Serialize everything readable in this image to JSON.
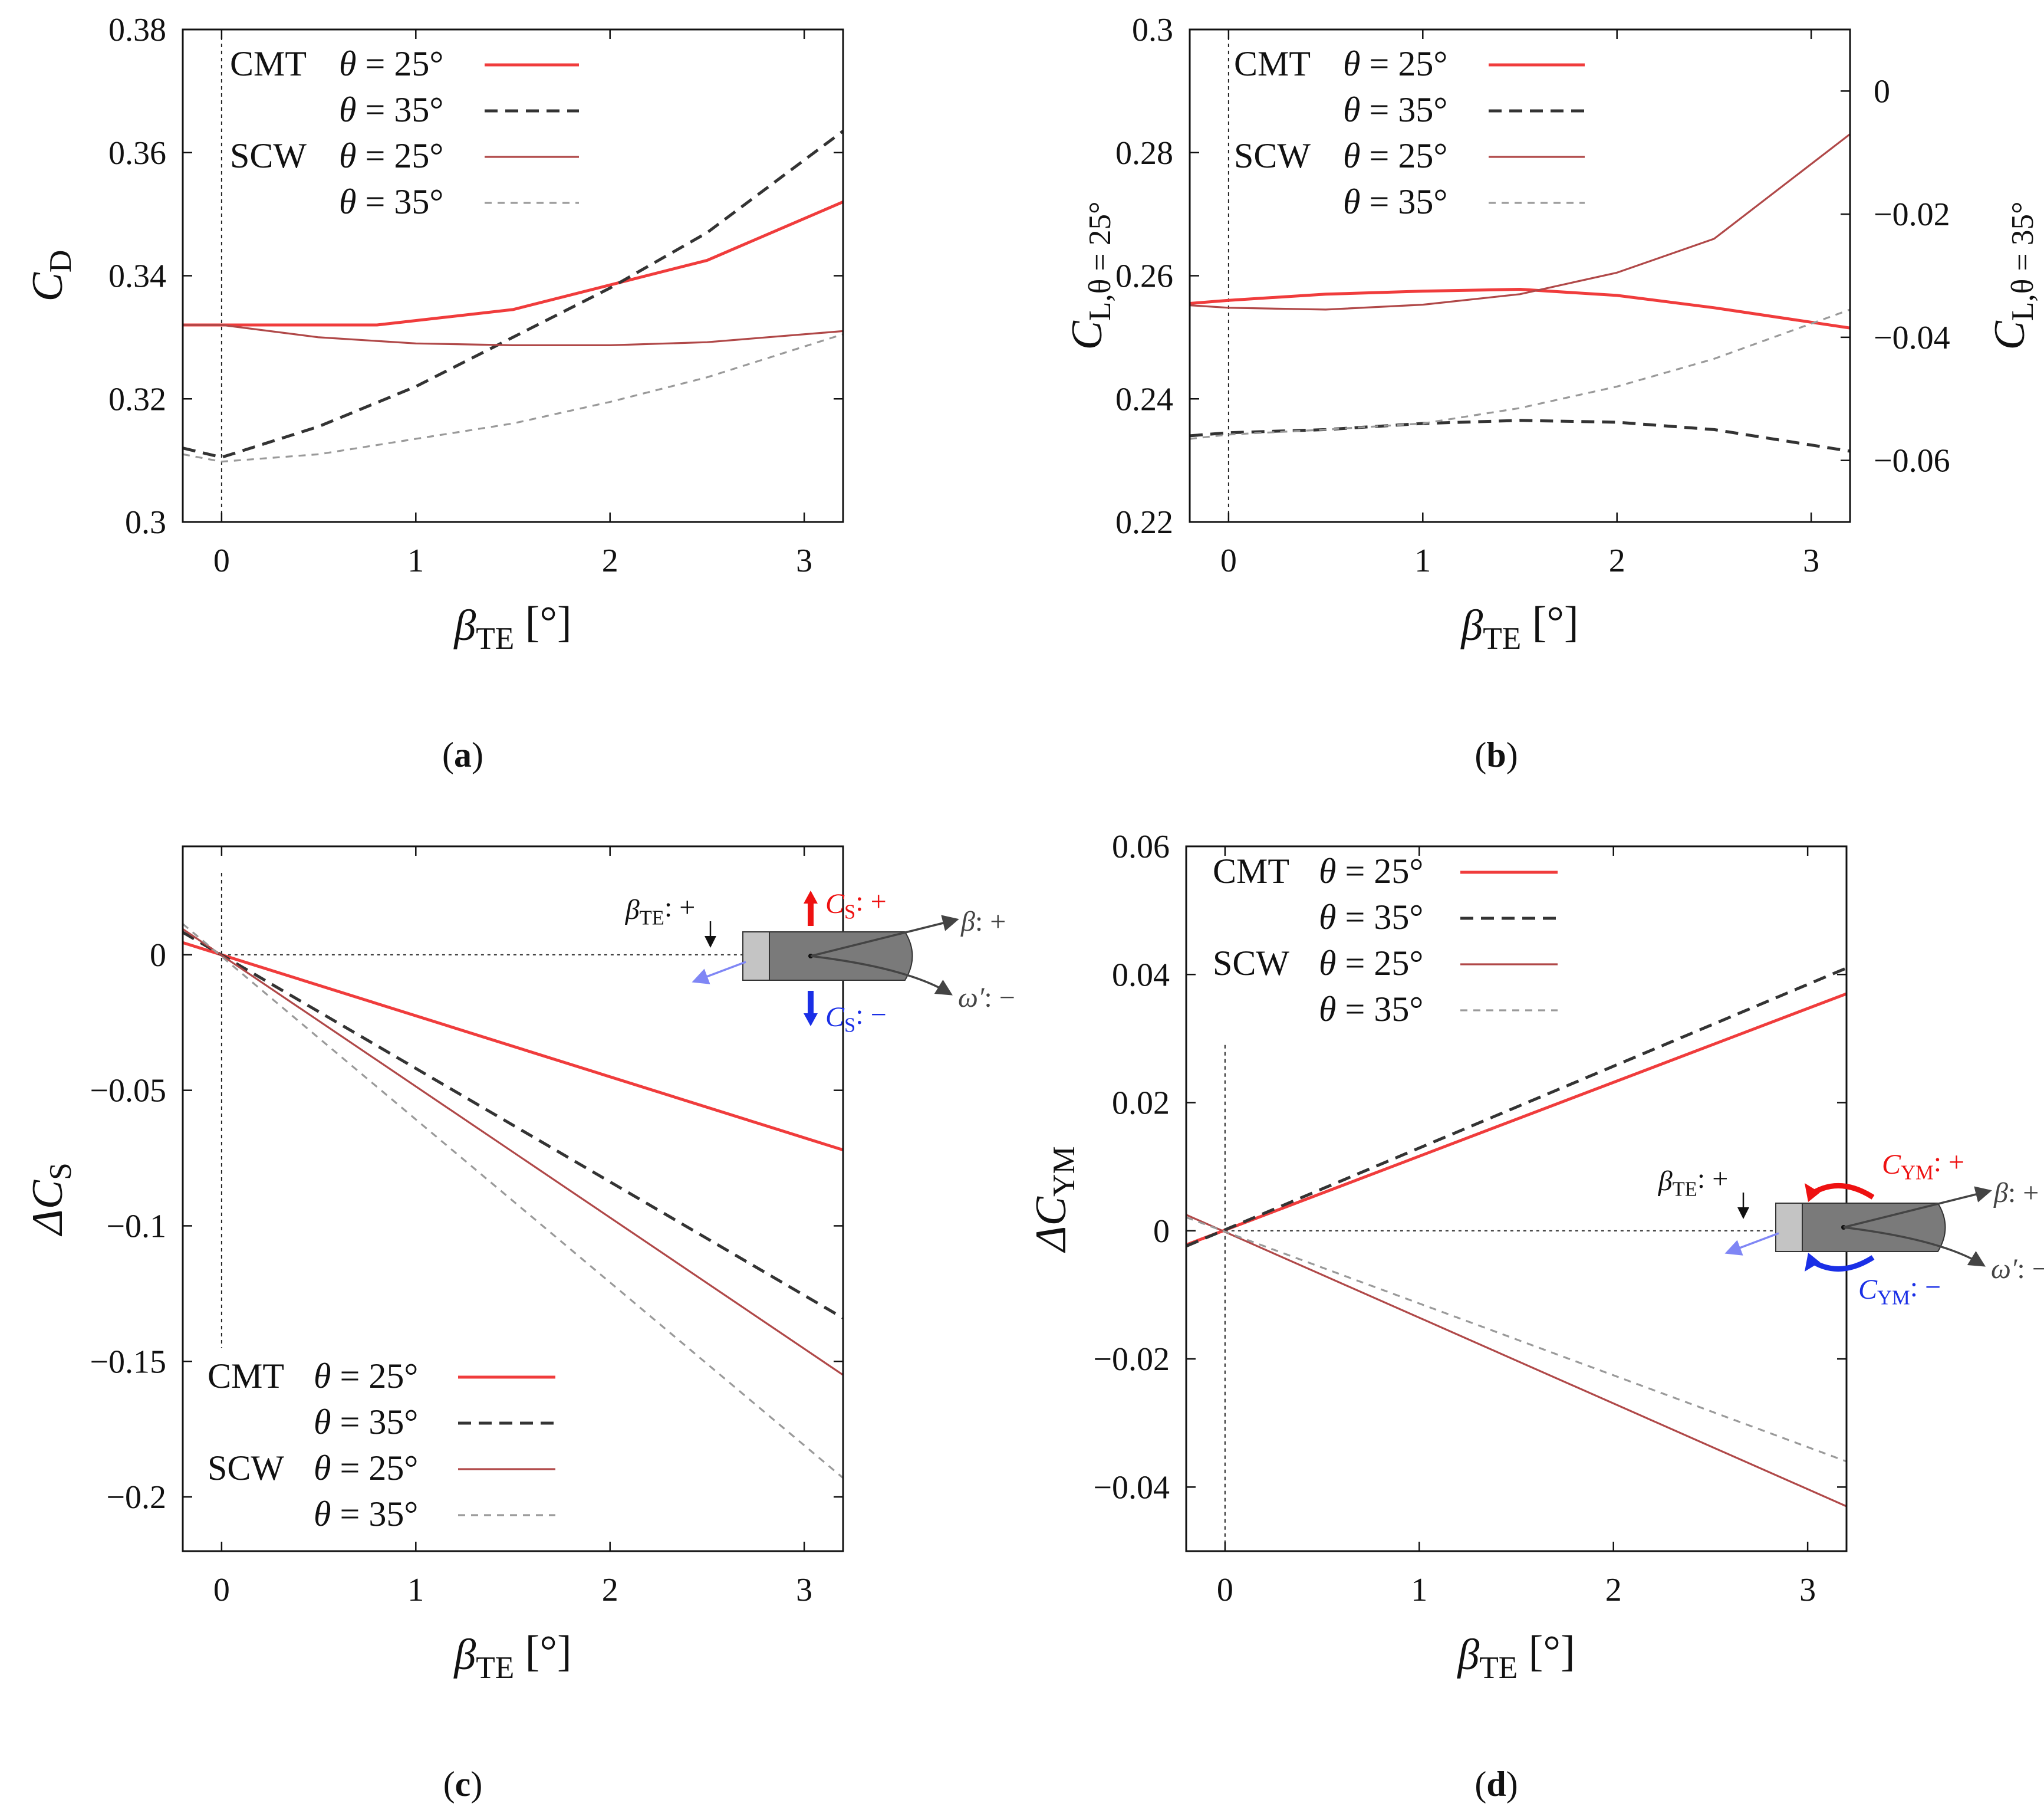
{
  "panels": [
    {
      "id": "a",
      "caption": "a",
      "ylabel": "C",
      "ylabel_sub": "D",
      "xlabel": "β",
      "xlabel_sub": "TE",
      "xlabel_unit": "[°]",
      "xlim": [
        -0.2,
        3.2
      ],
      "ylim": [
        0.3,
        0.38
      ],
      "xticks": [
        0,
        1,
        2,
        3
      ],
      "xtick_labels": [
        "0",
        "1",
        "2",
        "3"
      ],
      "yticks": [
        0.3,
        0.32,
        0.34,
        0.36,
        0.38
      ],
      "ytick_labels": [
        "0.3",
        "0.32",
        "0.34",
        "0.36",
        "0.38"
      ],
      "legend": [
        {
          "group": "CMT",
          "label": "θ = 25°"
        },
        {
          "group": "",
          "label": "θ = 35°"
        },
        {
          "group": "SCW",
          "label": "θ = 25°"
        },
        {
          "group": "",
          "label": "θ = 35°"
        }
      ]
    },
    {
      "id": "b",
      "caption": "b",
      "ylabel": "C",
      "ylabel_sub": "L,θ = 25°",
      "y2label": "C",
      "y2label_sub": "L,θ = 35°",
      "xlabel": "β",
      "xlabel_sub": "TE",
      "xlabel_unit": "[°]",
      "xlim": [
        -0.2,
        3.2
      ],
      "ylim": [
        0.22,
        0.3
      ],
      "y2lim": [
        -0.07,
        0.01
      ],
      "xticks": [
        0,
        1,
        2,
        3
      ],
      "xtick_labels": [
        "0",
        "1",
        "2",
        "3"
      ],
      "yticks": [
        0.22,
        0.24,
        0.26,
        0.28,
        0.3
      ],
      "ytick_labels": [
        "0.22",
        "0.24",
        "0.26",
        "0.28",
        "0.3"
      ],
      "y2ticks": [
        -0.06,
        -0.04,
        -0.02,
        0
      ],
      "y2tick_labels": [
        "−0.06",
        "−0.04",
        "−0.02",
        "0"
      ],
      "legend": [
        {
          "group": "CMT",
          "label": "θ = 25°"
        },
        {
          "group": "",
          "label": "θ = 35°"
        },
        {
          "group": "SCW",
          "label": "θ = 25°"
        },
        {
          "group": "",
          "label": "θ = 35°"
        }
      ]
    },
    {
      "id": "c",
      "caption": "c",
      "ylabel": "ΔC",
      "ylabel_sub": "S",
      "xlabel": "β",
      "xlabel_sub": "TE",
      "xlabel_unit": "[°]",
      "xlim": [
        -0.2,
        3.2
      ],
      "ylim": [
        -0.22,
        0.04
      ],
      "xticks": [
        0,
        1,
        2,
        3
      ],
      "xtick_labels": [
        "0",
        "1",
        "2",
        "3"
      ],
      "yticks": [
        0,
        -0.05,
        -0.1,
        -0.15,
        -0.2
      ],
      "ytick_labels": [
        "0",
        "−0.05",
        "−0.1",
        "−0.15",
        "−0.2"
      ],
      "legend": [
        {
          "group": "CMT",
          "label": "θ = 25°"
        },
        {
          "group": "",
          "label": "θ = 35°"
        },
        {
          "group": "SCW",
          "label": "θ = 25°"
        },
        {
          "group": "",
          "label": "θ = 35°"
        }
      ],
      "inset": {
        "beta_te": "β",
        "beta_te_sub": "TE",
        "beta_te_sign": ": +",
        "beta": "β",
        "beta_sign": ": +",
        "omega": "ω′",
        "omega_sign": ": −",
        "pos_label": "C",
        "pos_sub": "S",
        "pos_sign": ": +",
        "neg_label": "C",
        "neg_sub": "S",
        "neg_sign": ": −"
      }
    },
    {
      "id": "d",
      "caption": "d",
      "ylabel": "ΔC",
      "ylabel_sub": "YM",
      "xlabel": "β",
      "xlabel_sub": "TE",
      "xlabel_unit": "[°]",
      "xlim": [
        -0.2,
        3.2
      ],
      "ylim": [
        -0.05,
        0.06
      ],
      "xticks": [
        0,
        1,
        2,
        3
      ],
      "xtick_labels": [
        "0",
        "1",
        "2",
        "3"
      ],
      "yticks": [
        0.06,
        0.04,
        0.02,
        0,
        -0.02,
        -0.04
      ],
      "ytick_labels": [
        "0.06",
        "0.04",
        "0.02",
        "0",
        "−0.02",
        "−0.04"
      ],
      "legend": [
        {
          "group": "CMT",
          "label": "θ = 25°"
        },
        {
          "group": "",
          "label": "θ = 35°"
        },
        {
          "group": "SCW",
          "label": "θ = 25°"
        },
        {
          "group": "",
          "label": "θ = 35°"
        }
      ],
      "inset": {
        "beta_te": "β",
        "beta_te_sub": "TE",
        "beta_te_sign": ": +",
        "beta": "β",
        "beta_sign": ": +",
        "omega": "ω′",
        "omega_sign": ": −",
        "pos_label": "C",
        "pos_sub": "YM",
        "pos_sign": ": +",
        "neg_label": "C",
        "neg_sub": "YM",
        "neg_sign": ": −"
      }
    }
  ],
  "chart_data": [
    {
      "type": "line",
      "panel": "a",
      "xlabel": "βTE [°]",
      "ylabel": "CD",
      "xlim": [
        -0.2,
        3.2
      ],
      "ylim": [
        0.3,
        0.38
      ],
      "series": [
        {
          "name": "CMT θ = 25°",
          "x": [
            -0.2,
            0.8,
            1.5,
            2.0,
            2.5,
            3.2
          ],
          "y": [
            0.332,
            0.332,
            0.3345,
            0.3385,
            0.3425,
            0.352
          ]
        },
        {
          "name": "CMT θ = 35°",
          "x": [
            -0.2,
            0,
            0.5,
            1.0,
            1.5,
            2.0,
            2.5,
            3.2
          ],
          "y": [
            0.312,
            0.3105,
            0.3155,
            0.322,
            0.33,
            0.338,
            0.347,
            0.3635
          ]
        },
        {
          "name": "SCW θ = 25°",
          "x": [
            -0.2,
            0,
            0.5,
            1.0,
            1.5,
            2.0,
            2.5,
            3.2
          ],
          "y": [
            0.332,
            0.332,
            0.33,
            0.329,
            0.3287,
            0.3287,
            0.3292,
            0.331
          ]
        },
        {
          "name": "SCW θ = 35°",
          "x": [
            -0.2,
            0,
            0.5,
            1.0,
            1.5,
            2.0,
            2.5,
            3.2
          ],
          "y": [
            0.311,
            0.3098,
            0.311,
            0.3135,
            0.316,
            0.3195,
            0.3235,
            0.3305
          ]
        }
      ]
    },
    {
      "type": "line",
      "panel": "b",
      "xlabel": "βTE [°]",
      "ylabel": "CL,θ=25°",
      "y2label": "CL,θ=35°",
      "xlim": [
        -0.2,
        3.2
      ],
      "ylim": [
        0.22,
        0.3
      ],
      "y2lim": [
        -0.07,
        0.01
      ],
      "series": [
        {
          "name": "CMT θ = 25°",
          "axis": "left",
          "x": [
            -0.2,
            0,
            0.5,
            1.0,
            1.5,
            2.0,
            2.5,
            3.2
          ],
          "y": [
            0.2555,
            0.256,
            0.257,
            0.2575,
            0.2578,
            0.2568,
            0.2548,
            0.2515
          ]
        },
        {
          "name": "CMT θ = 35°",
          "axis": "right",
          "x": [
            -0.2,
            0,
            0.5,
            1.0,
            1.5,
            2.0,
            2.5,
            3.2
          ],
          "y": [
            -0.056,
            -0.0555,
            -0.055,
            -0.054,
            -0.0535,
            -0.0538,
            -0.055,
            -0.0585
          ]
        },
        {
          "name": "SCW θ = 25°",
          "axis": "left",
          "x": [
            -0.2,
            0,
            0.5,
            1.0,
            1.5,
            2.0,
            2.5,
            3.2
          ],
          "y": [
            0.2552,
            0.2548,
            0.2545,
            0.2553,
            0.257,
            0.2605,
            0.266,
            0.283
          ]
        },
        {
          "name": "SCW θ = 35°",
          "axis": "right",
          "x": [
            -0.2,
            0,
            0.5,
            1.0,
            1.5,
            2.0,
            2.5,
            3.2
          ],
          "y": [
            -0.0565,
            -0.0558,
            -0.055,
            -0.054,
            -0.0515,
            -0.048,
            -0.0435,
            -0.0355
          ]
        }
      ]
    },
    {
      "type": "line",
      "panel": "c",
      "xlabel": "βTE [°]",
      "ylabel": "ΔCS",
      "xlim": [
        -0.2,
        3.2
      ],
      "ylim": [
        -0.22,
        0.04
      ],
      "series": [
        {
          "name": "CMT θ = 25°",
          "x": [
            -0.2,
            3.2
          ],
          "y": [
            0.0045,
            -0.072
          ]
        },
        {
          "name": "CMT θ = 35°",
          "x": [
            -0.2,
            3.2
          ],
          "y": [
            0.0083,
            -0.134
          ]
        },
        {
          "name": "SCW θ = 25°",
          "x": [
            -0.2,
            3.2
          ],
          "y": [
            0.0095,
            -0.155
          ]
        },
        {
          "name": "SCW θ = 35°",
          "x": [
            -0.2,
            3.2
          ],
          "y": [
            0.0114,
            -0.193
          ]
        }
      ]
    },
    {
      "type": "line",
      "panel": "d",
      "xlabel": "βTE [°]",
      "ylabel": "ΔCYM",
      "xlim": [
        -0.2,
        3.2
      ],
      "ylim": [
        -0.05,
        0.06
      ],
      "series": [
        {
          "name": "CMT θ = 25°",
          "x": [
            -0.2,
            3.2
          ],
          "y": [
            -0.0022,
            0.037
          ]
        },
        {
          "name": "CMT θ = 35°",
          "x": [
            -0.2,
            3.2
          ],
          "y": [
            -0.0024,
            0.041
          ]
        },
        {
          "name": "SCW θ = 25°",
          "x": [
            -0.2,
            3.2
          ],
          "y": [
            0.0025,
            -0.043
          ]
        },
        {
          "name": "SCW θ = 35°",
          "x": [
            -0.2,
            3.2
          ],
          "y": [
            0.0021,
            -0.036
          ]
        }
      ]
    }
  ],
  "colors": {
    "cmt25": "#f03c3c",
    "cmt35": "#333333",
    "scw25": "#b04848",
    "scw35": "#9a9a9a",
    "inset_pos": "#ee1111",
    "inset_neg": "#1a2fe6",
    "body": "#7a7a7a",
    "cap": "#c4c4c4",
    "dir": "#444444",
    "te_arrow": "#7f86f5"
  }
}
